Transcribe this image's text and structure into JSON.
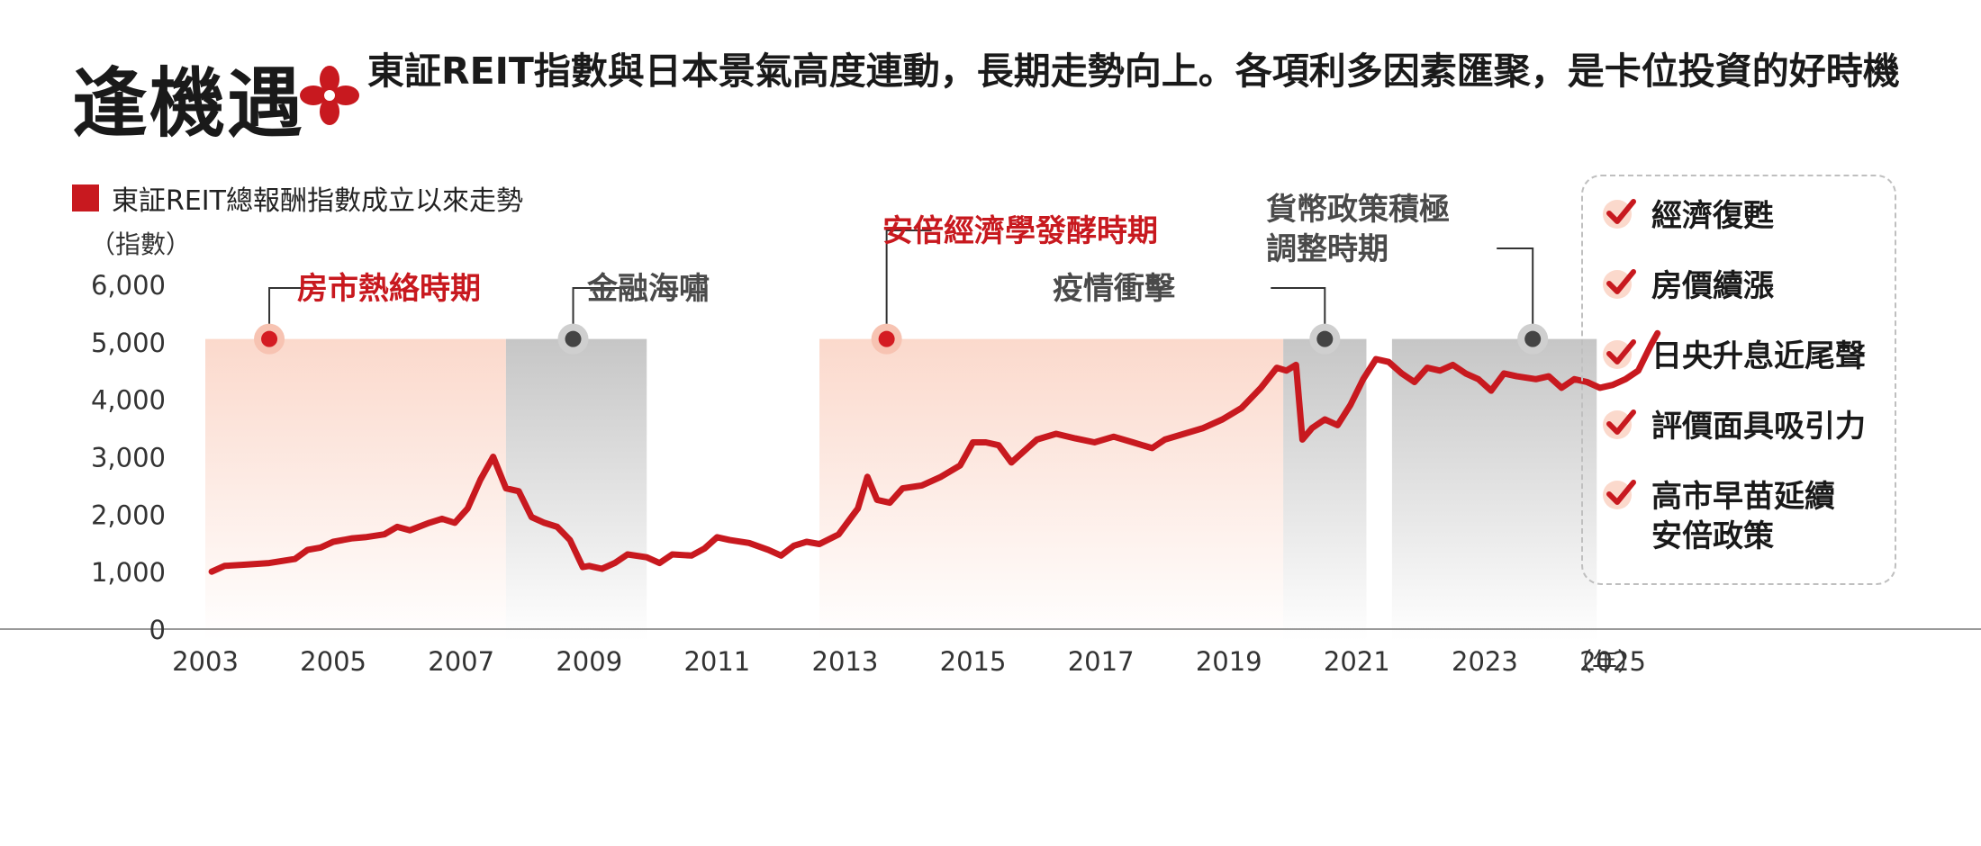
{
  "header": {
    "title": "逢機遇",
    "subtitle": "東証REIT指數與日本景氣高度連動，長期走勢向上。各項利多因素匯聚，是卡位投資的好時機"
  },
  "legend": {
    "label": "東証REIT總報酬指數成立以來走勢"
  },
  "colors": {
    "accent": "#c8191f",
    "pink_band": "#fbd9cc",
    "gray_band": "#c9c9c9",
    "dark_marker": "#444444"
  },
  "checklist": {
    "items": [
      {
        "label": "經濟復甦",
        "icon": "check-icon"
      },
      {
        "label": "房價續漲",
        "icon": "check-icon"
      },
      {
        "label": "日央升息近尾聲",
        "icon": "check-icon"
      },
      {
        "label": "評價面具吸引力",
        "icon": "check-icon"
      },
      {
        "label": "高市早苗延續\n安倍政策",
        "icon": "check-icon"
      }
    ]
  },
  "chart_data": {
    "type": "line",
    "title": "東証REIT總報酬指數成立以來走勢",
    "ylabel": "（指數）",
    "xlabel": "（年）",
    "xlim": [
      2003,
      2026
    ],
    "ylim": [
      0,
      6000
    ],
    "yticks": [
      0,
      1000,
      2000,
      3000,
      4000,
      5000,
      6000
    ],
    "ytick_labels": [
      "0",
      "1,000",
      "2,000",
      "3,000",
      "4,000",
      "5,000",
      "6,000"
    ],
    "xticks": [
      2003,
      2005,
      2007,
      2009,
      2011,
      2013,
      2015,
      2017,
      2019,
      2021,
      2023,
      2025
    ],
    "xtick_labels": [
      "2003",
      "2005",
      "2007",
      "2009",
      "2011",
      "2013",
      "2015",
      "2017",
      "2019",
      "2021",
      "2023",
      "2025"
    ],
    "series": [
      {
        "name": "東証REIT總報酬指數",
        "x": [
          2003.1,
          2003.3,
          2003.6,
          2004.0,
          2004.4,
          2004.6,
          2004.8,
          2005.0,
          2005.3,
          2005.5,
          2005.8,
          2006.0,
          2006.2,
          2006.5,
          2006.7,
          2006.9,
          2007.1,
          2007.3,
          2007.5,
          2007.7,
          2007.9,
          2008.1,
          2008.3,
          2008.5,
          2008.7,
          2008.9,
          2009.0,
          2009.2,
          2009.4,
          2009.6,
          2009.9,
          2010.1,
          2010.3,
          2010.6,
          2010.8,
          2011.0,
          2011.2,
          2011.5,
          2011.8,
          2012.0,
          2012.2,
          2012.4,
          2012.6,
          2012.9,
          2013.1,
          2013.2,
          2013.35,
          2013.5,
          2013.7,
          2013.9,
          2014.2,
          2014.5,
          2014.8,
          2015.0,
          2015.2,
          2015.4,
          2015.6,
          2015.8,
          2016.0,
          2016.3,
          2016.6,
          2016.9,
          2017.2,
          2017.5,
          2017.8,
          2018.0,
          2018.3,
          2018.6,
          2018.9,
          2019.2,
          2019.5,
          2019.75,
          2019.9,
          2020.05,
          2020.15,
          2020.3,
          2020.5,
          2020.7,
          2020.9,
          2021.1,
          2021.3,
          2021.5,
          2021.7,
          2021.9,
          2022.1,
          2022.3,
          2022.5,
          2022.7,
          2022.9,
          2023.1,
          2023.3,
          2023.5,
          2023.8,
          2024.0,
          2024.2,
          2024.4,
          2024.6,
          2024.8,
          2025.0,
          2025.2,
          2025.4,
          2025.6,
          2025.7
        ],
        "y": [
          1000,
          1100,
          1120,
          1150,
          1220,
          1380,
          1420,
          1520,
          1580,
          1600,
          1650,
          1780,
          1720,
          1850,
          1920,
          1850,
          2100,
          2600,
          3000,
          2450,
          2400,
          1950,
          1850,
          1780,
          1550,
          1080,
          1100,
          1050,
          1150,
          1300,
          1250,
          1150,
          1300,
          1280,
          1400,
          1600,
          1550,
          1500,
          1380,
          1280,
          1450,
          1520,
          1480,
          1650,
          1950,
          2100,
          2650,
          2250,
          2200,
          2450,
          2500,
          2650,
          2850,
          3250,
          3250,
          3200,
          2900,
          3100,
          3300,
          3400,
          3320,
          3250,
          3350,
          3250,
          3150,
          3300,
          3400,
          3500,
          3650,
          3850,
          4200,
          4550,
          4500,
          4600,
          3300,
          3500,
          3650,
          3550,
          3900,
          4350,
          4700,
          4650,
          4450,
          4300,
          4550,
          4500,
          4600,
          4450,
          4350,
          4150,
          4450,
          4400,
          4350,
          4400,
          4200,
          4350,
          4300,
          4200,
          4250,
          4350,
          4500,
          4950,
          5150
        ]
      }
    ],
    "bands": [
      {
        "label": "房市熱絡時期",
        "start": 2003.0,
        "end": 2007.7,
        "kind": "bull",
        "marker_x": 2004.0
      },
      {
        "label": "金融海嘯",
        "start": 2007.7,
        "end": 2009.9,
        "kind": "bear",
        "marker_x": 2008.75
      },
      {
        "label": "安倍經濟學發酵時期",
        "start": 2012.6,
        "end": 2019.85,
        "kind": "bull",
        "marker_x": 2013.65
      },
      {
        "label": "疫情衝擊",
        "start": 2019.85,
        "end": 2021.15,
        "kind": "bear",
        "marker_x": 2020.5
      },
      {
        "label": "貨幣政策積極\n調整時期",
        "start": 2021.55,
        "end": 2024.75,
        "kind": "bear",
        "marker_x": 2023.75
      }
    ]
  }
}
